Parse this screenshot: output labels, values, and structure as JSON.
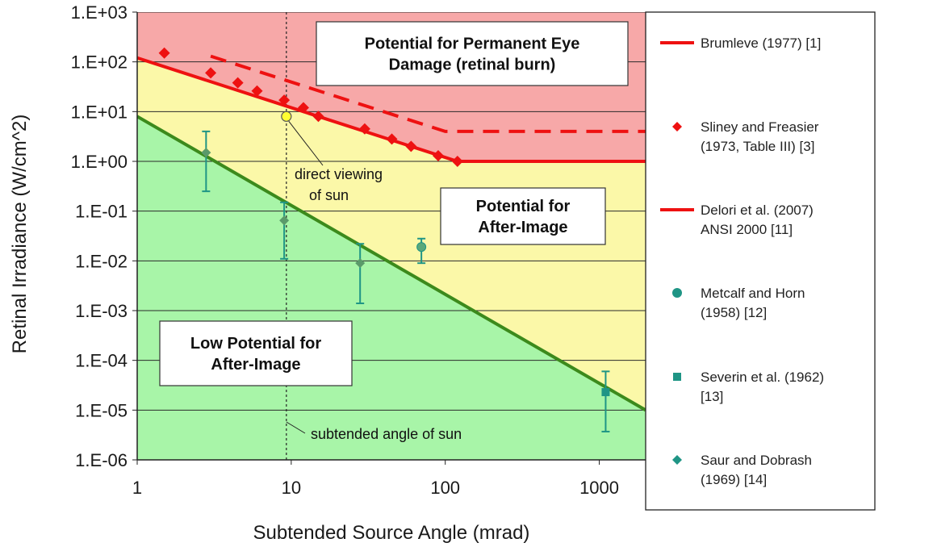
{
  "chart_data": {
    "type": "scatter",
    "x_scale": "log",
    "y_scale": "log",
    "xlim": [
      1,
      2000
    ],
    "ylim": [
      1e-06,
      1000
    ],
    "xlabel": "Subtended Source Angle (mrad)",
    "ylabel": "Retinal Irradiance (W/cm^2)",
    "x_ticks": [
      {
        "value": 1,
        "label": "1"
      },
      {
        "value": 10,
        "label": "10"
      },
      {
        "value": 100,
        "label": "100"
      },
      {
        "value": 1000,
        "label": "1000"
      }
    ],
    "y_ticks": [
      {
        "value": 1000,
        "label": "1.E+03"
      },
      {
        "value": 100,
        "label": "1.E+02"
      },
      {
        "value": 10,
        "label": "1.E+01"
      },
      {
        "value": 1,
        "label": "1.E+00"
      },
      {
        "value": 0.1,
        "label": "1.E-01"
      },
      {
        "value": 0.01,
        "label": "1.E-02"
      },
      {
        "value": 0.001,
        "label": "1.E-03"
      },
      {
        "value": 0.0001,
        "label": "1.E-04"
      },
      {
        "value": 1e-05,
        "label": "1.E-05"
      },
      {
        "value": 1e-06,
        "label": "1.E-06"
      }
    ],
    "grid": "horizontal",
    "legend_position": "right",
    "regions": [
      {
        "label_lines": [
          "Potential for Permanent Eye",
          "Damage (retinal burn)"
        ],
        "color": "#f7a8a8"
      },
      {
        "label_lines": [
          "Potential for",
          "After-Image"
        ],
        "color": "#fbf8a8"
      },
      {
        "label_lines": [
          "Low Potential for",
          "After-Image"
        ],
        "color": "#a8f5a8"
      }
    ],
    "series": [
      {
        "name": "Brumleve (1977) [1]",
        "kind": "line",
        "style": "solid",
        "color": "#ee1111",
        "x": [
          1,
          120,
          2000
        ],
        "y": [
          120,
          1,
          1
        ]
      },
      {
        "name": "Sliney and Freasier (1973, Table III) [3]",
        "kind": "marker",
        "marker": "diamond",
        "color": "#ee1111",
        "x": [
          1.5,
          3,
          4.5,
          6,
          9,
          12,
          15,
          30,
          45,
          60,
          90,
          120
        ],
        "y": [
          150,
          60,
          38,
          26,
          17,
          12,
          8,
          4.5,
          2.8,
          2,
          1.3,
          1
        ]
      },
      {
        "name": "Delori et al. (2007) ANSI 2000 [11]",
        "kind": "line",
        "style": "dashed",
        "color": "#ee1111",
        "x": [
          3,
          100,
          2000
        ],
        "y": [
          130,
          4,
          4
        ]
      },
      {
        "name": "Metcalf and Horn (1958) [12]",
        "kind": "marker",
        "marker": "circle",
        "color": "#1f9585",
        "points": [
          {
            "x": 70,
            "y": 0.019,
            "low": 0.009,
            "high": 0.028
          }
        ]
      },
      {
        "name": "Severin et al. (1962) [13]",
        "kind": "marker",
        "marker": "square",
        "color": "#1f9585",
        "points": [
          {
            "x": 1100,
            "y": 2.3e-05,
            "low": 3.7e-06,
            "high": 6e-05
          }
        ]
      },
      {
        "name": "Saur and Dobrash (1969) [14]",
        "kind": "marker",
        "marker": "diamond",
        "color": "#1f9585",
        "points": [
          {
            "x": 2.8,
            "y": 1.5,
            "low": 0.25,
            "high": 4
          },
          {
            "x": 9,
            "y": 0.065,
            "low": 0.011,
            "high": 0.15
          },
          {
            "x": 28,
            "y": 0.009,
            "low": 0.0014,
            "high": 0.022
          }
        ]
      }
    ],
    "boundary_line": {
      "color": "#3c8a1c",
      "x": [
        1,
        2000
      ],
      "y": [
        8,
        1e-05
      ]
    },
    "sun_point": {
      "x": 9.3,
      "y": 8,
      "color": "#ffff33"
    },
    "sun_angle_line": {
      "x": 9.3
    },
    "annotations": [
      {
        "lines": [
          "direct viewing",
          "of sun"
        ]
      },
      {
        "lines": [
          "subtended angle of sun"
        ]
      }
    ]
  },
  "legend": {
    "items": [
      {
        "lines": [
          "Brumleve (1977) [1]"
        ],
        "symbol": "line",
        "color": "#ee1111"
      },
      {
        "lines": [
          "Sliney and Freasier",
          "(1973, Table III) [3]"
        ],
        "symbol": "diamond",
        "color": "#ee1111"
      },
      {
        "lines": [
          "Delori et al. (2007)",
          "ANSI 2000 [11]"
        ],
        "symbol": "line",
        "color": "#ee1111"
      },
      {
        "lines": [
          "Metcalf and Horn",
          "(1958) [12]"
        ],
        "symbol": "circle",
        "color": "#1f9585"
      },
      {
        "lines": [
          "Severin et al. (1962)",
          "[13]"
        ],
        "symbol": "square",
        "color": "#1f9585"
      },
      {
        "lines": [
          "Saur and Dobrash",
          "(1969) [14]"
        ],
        "symbol": "diamond",
        "color": "#1f9585"
      }
    ]
  }
}
